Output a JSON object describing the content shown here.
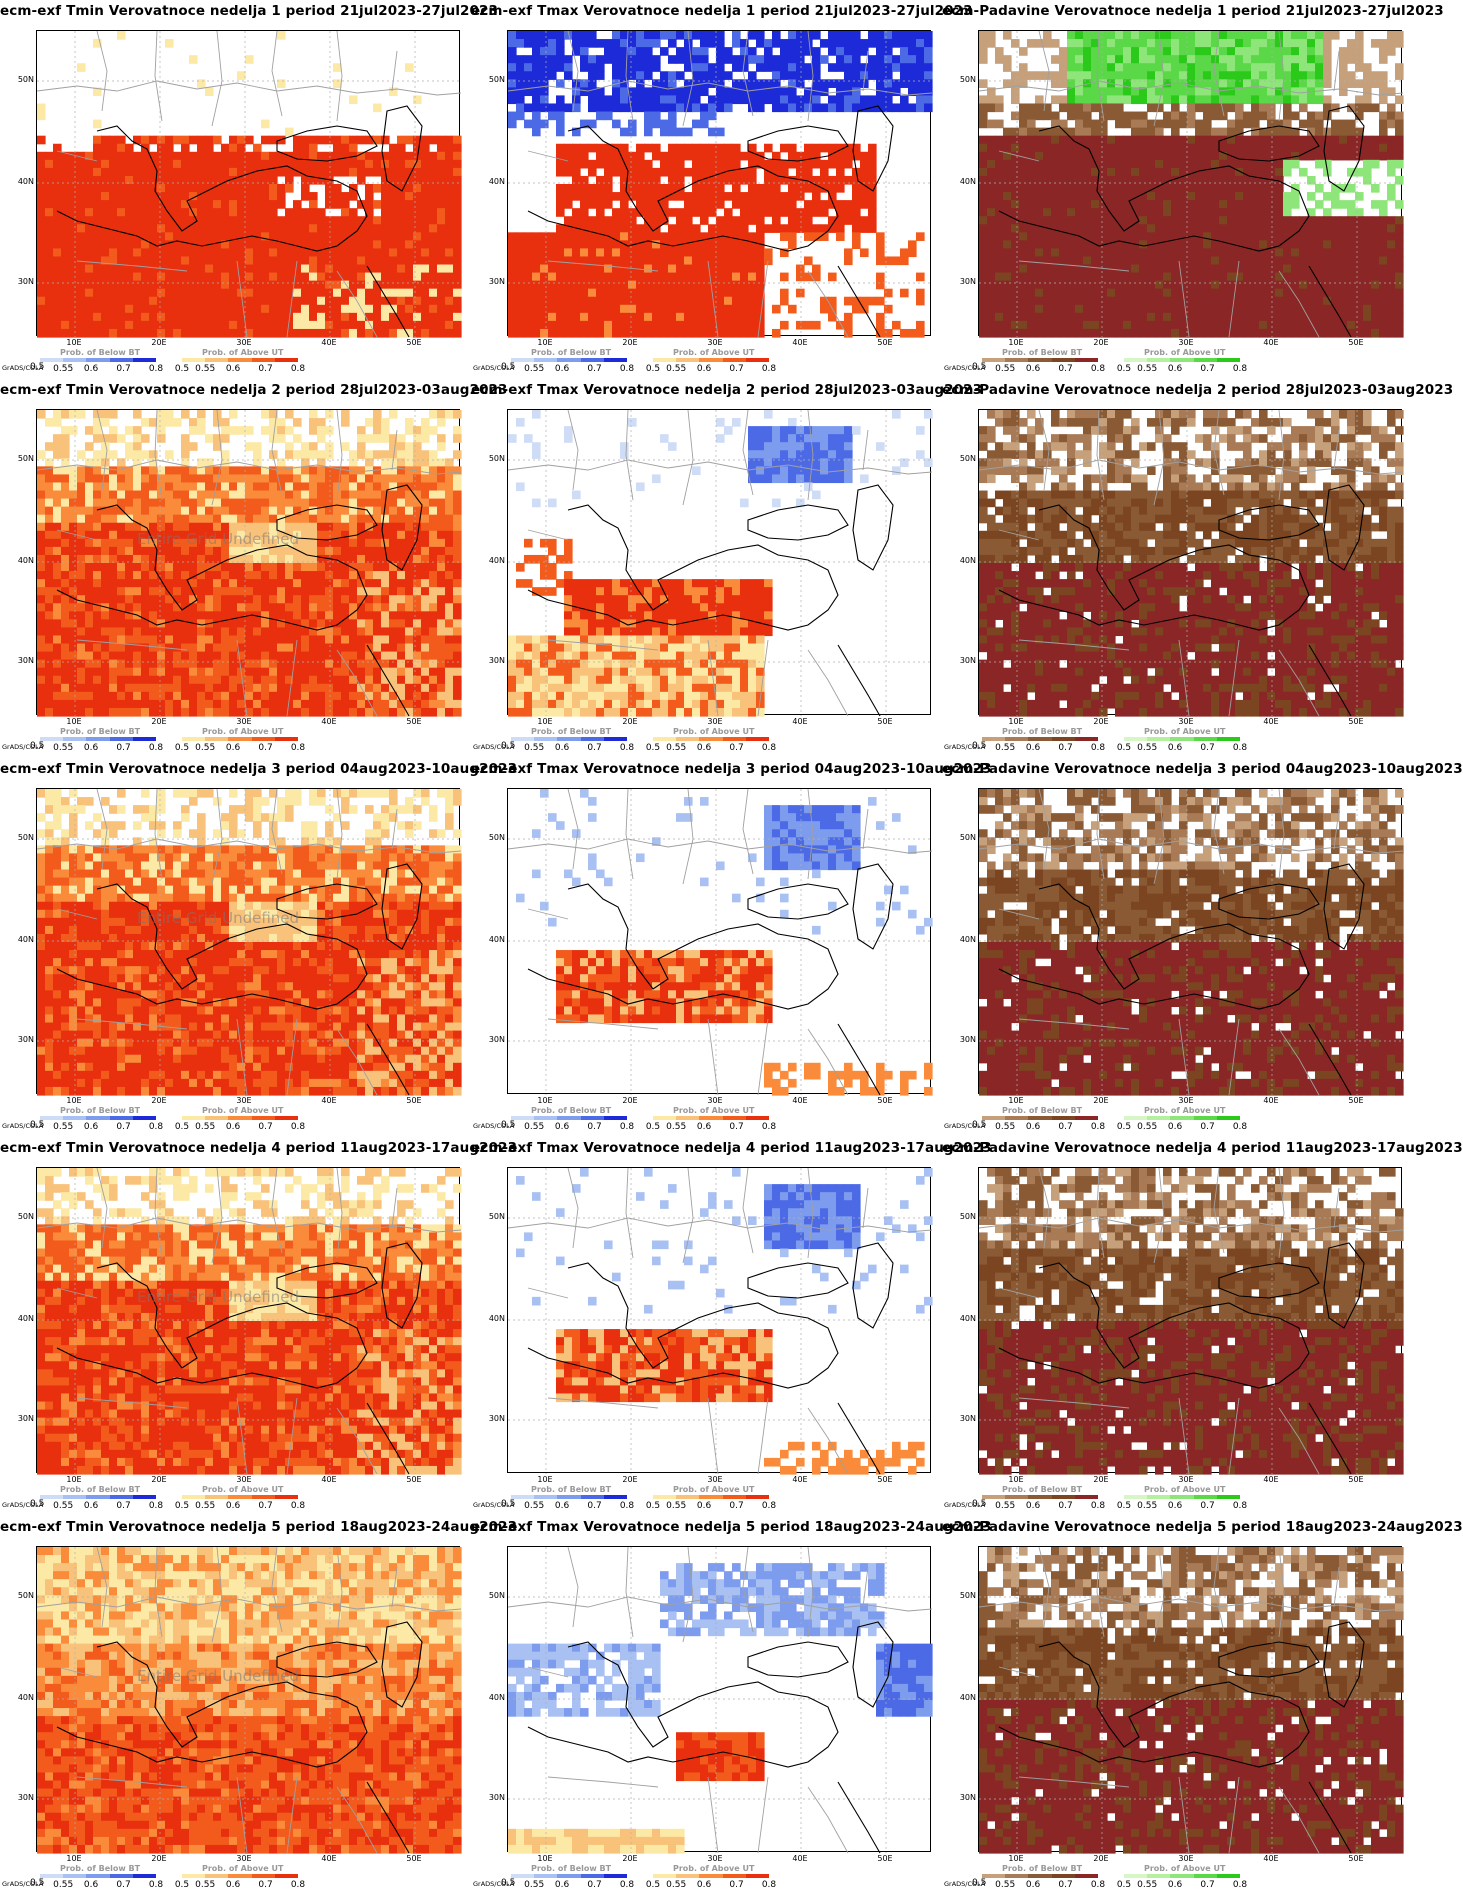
{
  "panels": [
    {
      "title": "ecm-exf Tmin Verovatnoce nedelja 1 period 21jul2023-27jul2023",
      "var": "tmin",
      "week": 1,
      "pattern": "heat_strong"
    },
    {
      "title": "ecm-exf Tmax Verovatnoce nedelja 1 period 21jul2023-27jul2023",
      "var": "tmax",
      "week": 1,
      "pattern": "tmax_w1"
    },
    {
      "title": "ecm-Padavine Verovatnoce nedelja 1 period 21jul2023-27jul2023",
      "var": "precip",
      "week": 1,
      "pattern": "precip_w1"
    },
    {
      "title": "ecm-exf Tmin Verovatnoce nedelja 2 period 28jul2023-03aug2023",
      "var": "tmin",
      "week": 2,
      "pattern": "heat_mixed",
      "undefined_label": "Entire Grid Undefined"
    },
    {
      "title": "ecm-exf Tmax Verovatnoce nedelja 2 period 28jul2023-03aug2023",
      "var": "tmax",
      "week": 2,
      "pattern": "tmax_w2"
    },
    {
      "title": "ecm-Padavine Verovatnoce nedelja 2 period 28jul2023-03aug2023",
      "var": "precip",
      "week": 2,
      "pattern": "precip_dry"
    },
    {
      "title": "ecm-exf Tmin Verovatnoce nedelja 3 period 04aug2023-10aug2023",
      "var": "tmin",
      "week": 3,
      "pattern": "heat_mixed",
      "undefined_label": "Entire Grid Undefined"
    },
    {
      "title": "ecm-exf Tmax Verovatnoce nedelja 3 period 04aug2023-10aug2023",
      "var": "tmax",
      "week": 3,
      "pattern": "tmax_w3"
    },
    {
      "title": "ecm-Padavine Verovatnoce nedelja 3 period 04aug2023-10aug2023",
      "var": "precip",
      "week": 3,
      "pattern": "precip_dry"
    },
    {
      "title": "ecm-exf Tmin Verovatnoce nedelja 4 period 11aug2023-17aug2023",
      "var": "tmin",
      "week": 4,
      "pattern": "heat_mixed",
      "undefined_label": "Entire Grid Undefined"
    },
    {
      "title": "ecm-exf Tmax Verovatnoce nedelja 4 period 11aug2023-17aug2023",
      "var": "tmax",
      "week": 4,
      "pattern": "tmax_w3"
    },
    {
      "title": "ecm-Padavine Verovatnoce nedelja 4 period 11aug2023-17aug2023",
      "var": "precip",
      "week": 4,
      "pattern": "precip_dry"
    },
    {
      "title": "ecm-exf Tmin Verovatnoce nedelja 5 period 18aug2023-24aug2023",
      "var": "tmin",
      "week": 5,
      "pattern": "heat_light",
      "undefined_label": "Entire Grid Undefined"
    },
    {
      "title": "ecm-exf Tmax Verovatnoce nedelja 5 period 18aug2023-24aug2023",
      "var": "tmax",
      "week": 5,
      "pattern": "tmax_w5"
    },
    {
      "title": "ecm-Padavine Verovatnoce nedelja 5 period 18aug2023-24aug2023",
      "var": "precip",
      "week": 5,
      "pattern": "precip_dry"
    }
  ],
  "axes": {
    "lat_labels": [
      "50N",
      "40N",
      "30N"
    ],
    "lon_labels": [
      "10E",
      "20E",
      "30E",
      "40E",
      "50E"
    ]
  },
  "legend": {
    "below_title": "Prob. of Below BT",
    "above_title": "Prob. of Above UT",
    "below_ticks": [
      "0.55",
      "0.6",
      "0.7",
      "0.8"
    ],
    "above_ticks": [
      "0.5",
      "0.55",
      "0.6",
      "0.7",
      "0.8"
    ],
    "brand": "GrADS/COLA",
    "brand_start": "0.5"
  },
  "colors": {
    "temp_above": [
      "#fde9a6",
      "#f9c27a",
      "#f98b3a",
      "#f25b1c",
      "#e8300e"
    ],
    "temp_below": [
      "#cfdcf6",
      "#a8c0f2",
      "#7e9cee",
      "#4d6ae6",
      "#1d2ad8"
    ],
    "precip_below": [
      "#c5a07a",
      "#a87a55",
      "#8a5a35",
      "#7a4520",
      "#8b2626"
    ],
    "precip_above": [
      "#d6f6c6",
      "#b4f0a0",
      "#8ee67a",
      "#5ad848",
      "#2ac91a"
    ],
    "land_line": "#a0a0a0",
    "coast_line": "#000000"
  }
}
